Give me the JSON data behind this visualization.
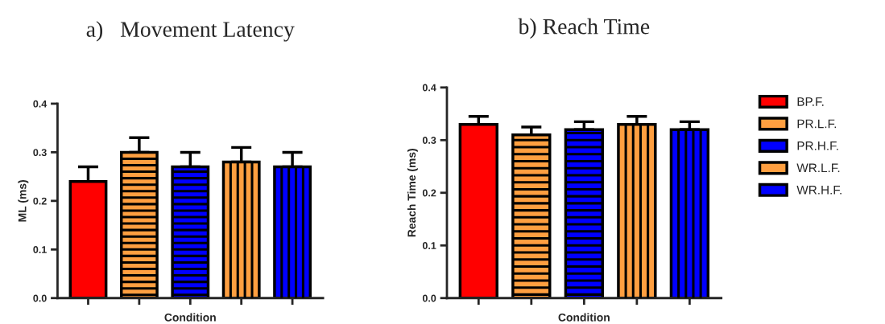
{
  "chart_data": [
    {
      "type": "bar",
      "title": "a)   Movement Latency",
      "xlabel": "Condition",
      "ylabel": "ML (ms)",
      "categories": [
        null,
        null,
        null,
        null,
        null
      ],
      "ylim": [
        0,
        0.4
      ],
      "yticks": [
        {
          "value": 0,
          "label": "0.0"
        },
        0.1,
        0.2,
        0.3,
        0.4
      ],
      "grid": false,
      "legend": false,
      "series": [
        {
          "color": "#ff0000",
          "values": [
            0.24,
            null,
            null,
            null,
            null
          ],
          "errors": [
            [
              0.24,
              0.27
            ],
            null,
            null,
            null,
            null
          ]
        },
        {
          "color": "#ff9f40",
          "values": [
            null,
            0.3,
            null,
            null,
            null
          ],
          "errors": [
            null,
            [
              0.3,
              0.33
            ],
            null,
            null,
            null
          ]
        },
        {
          "color": "#0000ff",
          "values": [
            null,
            null,
            0.27,
            null,
            null
          ],
          "errors": [
            null,
            null,
            [
              0.27,
              0.3
            ],
            null,
            null
          ]
        },
        {
          "color": "#ff9f40",
          "values": [
            null,
            null,
            null,
            0.28,
            null
          ],
          "errors": [
            null,
            null,
            null,
            [
              0.28,
              0.31
            ],
            null
          ]
        },
        {
          "color": "#0000ff",
          "values": [
            null,
            null,
            null,
            null,
            0.27
          ],
          "errors": [
            null,
            null,
            null,
            null,
            [
              0.27,
              0.3
            ]
          ]
        }
      ]
    },
    {
      "type": "bar",
      "title": "b) Reach Time",
      "xlabel": "Condition",
      "ylabel": "Reach Time (ms)",
      "categories": [
        null,
        null,
        null,
        null,
        null
      ],
      "ylim": [
        0,
        0.4
      ],
      "yticks": [
        {
          "value": 0,
          "label": "0.0"
        },
        0.1,
        0.2,
        0.3,
        0.4
      ],
      "grid": false,
      "legend": "right",
      "series": [
        {
          "name": "BP.F.",
          "color": "#ff0000",
          "values": [
            0.33,
            null,
            null,
            null,
            null
          ],
          "errors": [
            [
              0.33,
              0.345
            ],
            null,
            null,
            null,
            null
          ]
        },
        {
          "name": "PR.L.F.",
          "color": "#ff9f40",
          "values": [
            null,
            0.31,
            null,
            null,
            null
          ],
          "errors": [
            null,
            [
              0.31,
              0.325
            ],
            null,
            null,
            null
          ]
        },
        {
          "name": "PR.H.F.",
          "color": "#0000ff",
          "values": [
            null,
            null,
            0.32,
            null,
            null
          ],
          "errors": [
            null,
            null,
            [
              0.32,
              0.335
            ],
            null,
            null
          ]
        },
        {
          "name": "WR.L.F.",
          "color": "#ff9f40",
          "values": [
            null,
            null,
            null,
            0.33,
            null
          ],
          "errors": [
            null,
            null,
            null,
            [
              0.33,
              0.345
            ],
            null
          ]
        },
        {
          "name": "WR.H.F.",
          "color": "#0000ff",
          "values": [
            null,
            null,
            null,
            null,
            0.32
          ],
          "errors": [
            null,
            null,
            null,
            null,
            [
              0.32,
              0.335
            ]
          ]
        }
      ]
    }
  ]
}
